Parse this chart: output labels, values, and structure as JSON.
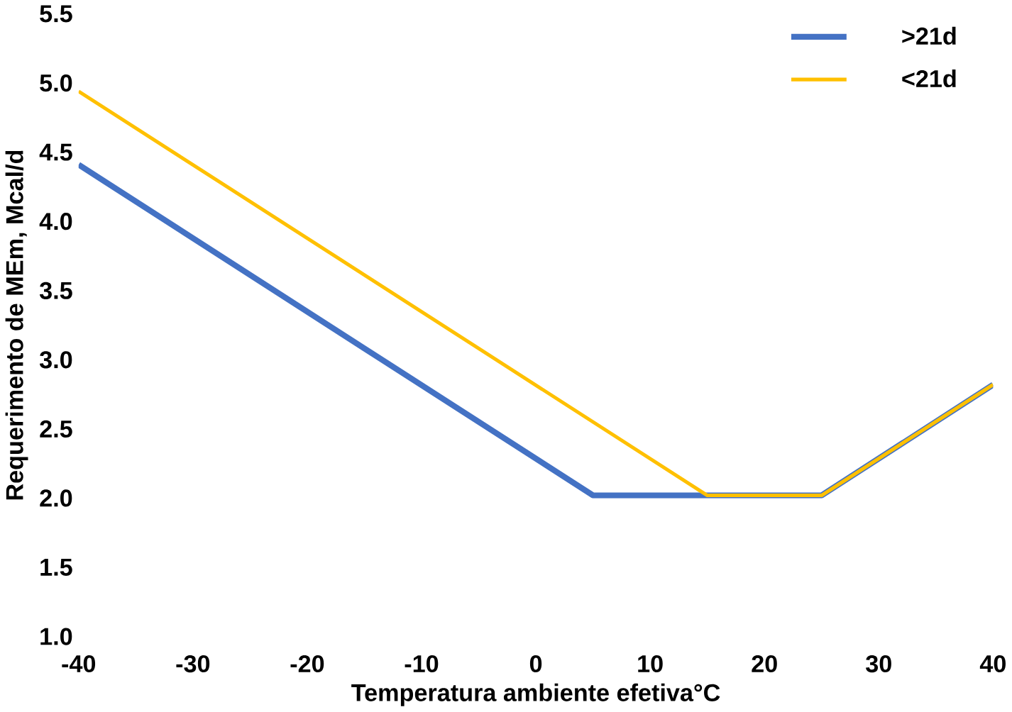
{
  "chart_data": {
    "type": "line",
    "xlabel": "Temperatura ambiente efetiva°C",
    "ylabel": "Requerimento de MEm, Mcal/d",
    "xlim": [
      -40,
      40
    ],
    "xticks": [
      -40,
      -30,
      -20,
      -10,
      0,
      10,
      20,
      30,
      40
    ],
    "ylim": [
      1.0,
      5.5
    ],
    "yticks": [
      {
        "value": 1.0,
        "label": "1.0"
      },
      {
        "value": 1.5,
        "label": "1.5"
      },
      {
        "value": 2.0,
        "label": "2.0"
      },
      {
        "value": 2.5,
        "label": "2.5"
      },
      {
        "value": 3.0,
        "label": "3.0"
      },
      {
        "value": 3.5,
        "label": "3.5"
      },
      {
        "value": 4.0,
        "label": "4.0"
      },
      {
        "value": 4.5,
        "label": "4.5"
      },
      {
        "value": 5.0,
        "label": "5.0"
      },
      {
        "value": 5.5,
        "label": "5.5"
      }
    ],
    "grid": false,
    "legend": "top right",
    "marker": "none",
    "series": [
      {
        "name": ">21d",
        "color": "#4472c4",
        "x": [
          -40,
          5,
          25,
          40
        ],
        "values": [
          4.41,
          2.02,
          2.02,
          2.82
        ]
      },
      {
        "name": "<21d",
        "color": "#ffc000",
        "x": [
          -40,
          15,
          25,
          40
        ],
        "values": [
          4.94,
          2.02,
          2.02,
          2.82
        ]
      }
    ]
  }
}
